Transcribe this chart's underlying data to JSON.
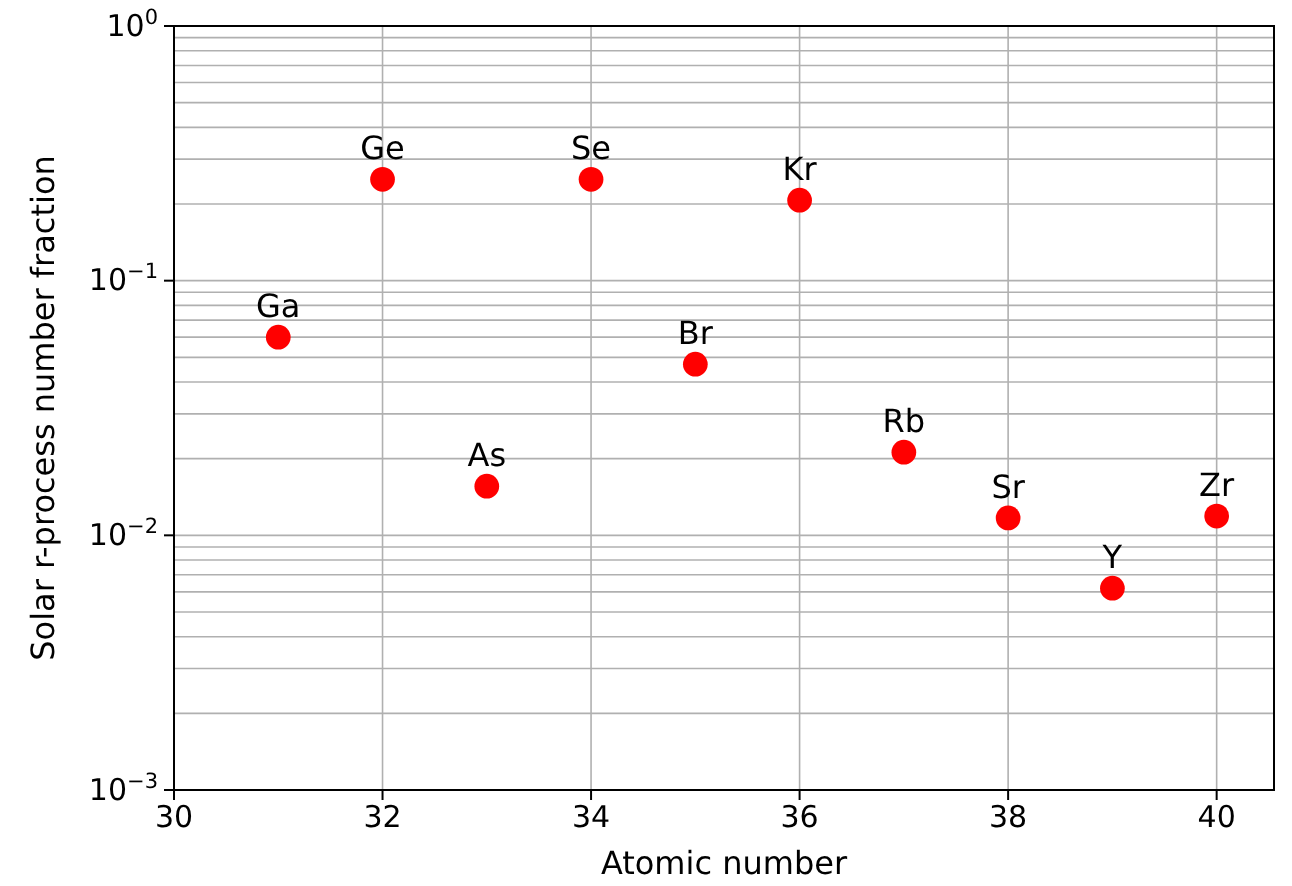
{
  "chart_data": {
    "type": "scatter",
    "xlabel": "Atomic number",
    "ylabel": "Solar r-process number fraction",
    "x": [
      31,
      32,
      33,
      34,
      35,
      36,
      37,
      38,
      39,
      40
    ],
    "values": [
      0.06,
      0.25,
      0.0156,
      0.25,
      0.047,
      0.207,
      0.0212,
      0.0117,
      0.0062,
      0.0119
    ],
    "color": "#ff0000",
    "marker": "circle",
    "log": "y",
    "grid": true,
    "xlim": [
      30,
      40.55
    ],
    "xticks": [
      30,
      32,
      34,
      36,
      38,
      40
    ],
    "ylim": [
      0.001,
      1
    ],
    "yticks": [
      {
        "value": 0.001,
        "label": "10$^{−3}$"
      },
      {
        "value": 0.01,
        "label": "10$^{−2}$"
      },
      {
        "value": 0.1,
        "label": "10$^{−1}$"
      },
      {
        "value": 1,
        "label": "10$^{0}$"
      }
    ],
    "annotations": [
      {
        "text": "Ga",
        "x": 31,
        "y": 0.06
      },
      {
        "text": "Ge",
        "x": 32,
        "y": 0.25
      },
      {
        "text": "As",
        "x": 33,
        "y": 0.0156
      },
      {
        "text": "Se",
        "x": 34,
        "y": 0.25
      },
      {
        "text": "Br",
        "x": 35,
        "y": 0.047
      },
      {
        "text": "Kr",
        "x": 36,
        "y": 0.207
      },
      {
        "text": "Rb",
        "x": 37,
        "y": 0.0212
      },
      {
        "text": "Sr",
        "x": 38,
        "y": 0.0117
      },
      {
        "text": "Y",
        "x": 39,
        "y": 0.0062
      },
      {
        "text": "Zr",
        "x": 40,
        "y": 0.0119
      }
    ]
  }
}
